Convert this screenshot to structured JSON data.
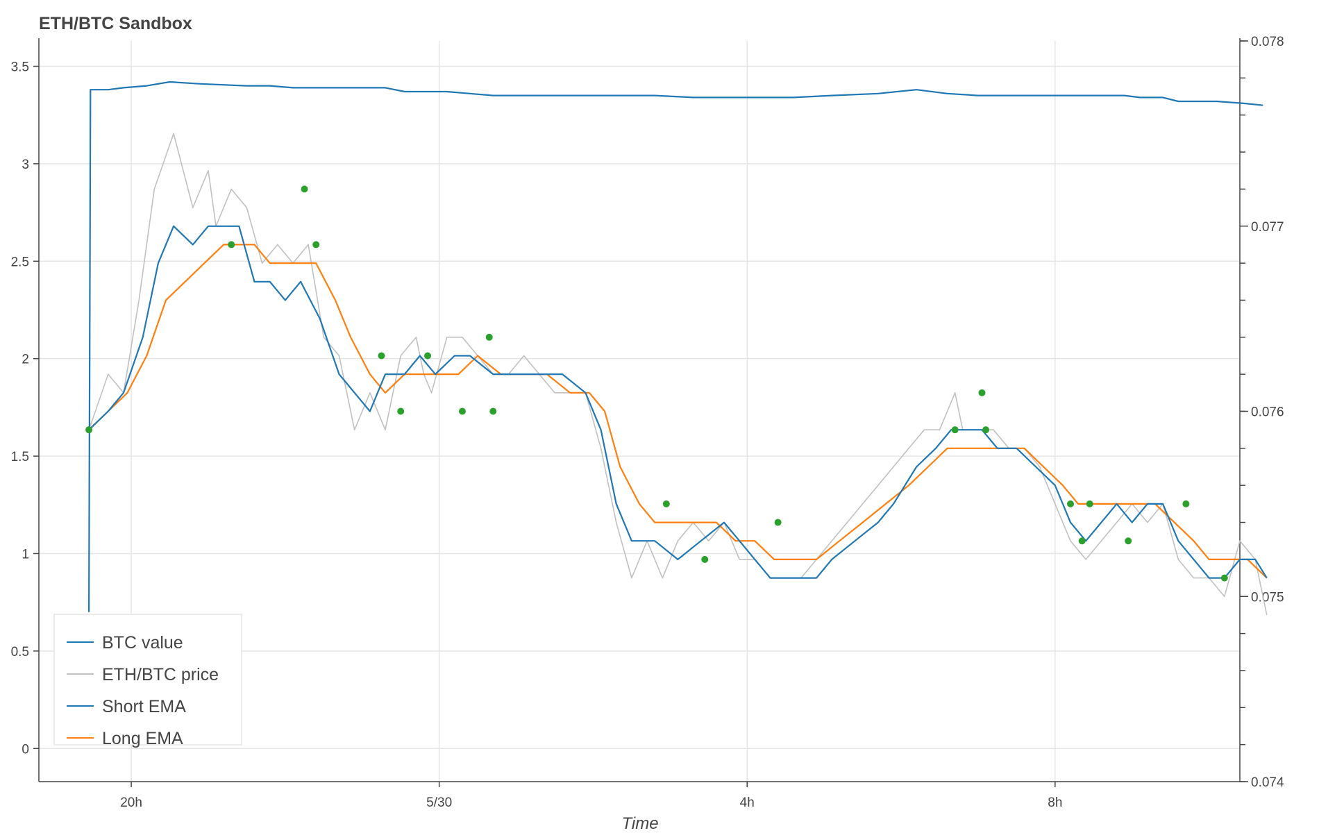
{
  "chart_data": {
    "type": "line",
    "title": "ETH/BTC Sandbox",
    "xlabel": "Time",
    "ylabel": "",
    "y2label": "",
    "x_range_hours": [
      18.6,
      13.99
    ],
    "xlim_hours": [
      -1.2,
      14.4
    ],
    "x_ticks": [
      {
        "hour": 0,
        "label": "20h"
      },
      {
        "hour": 4,
        "label": "5/30"
      },
      {
        "hour": 8,
        "label": "4h"
      },
      {
        "hour": 12,
        "label": "8h"
      }
    ],
    "ylim_left": [
      -0.17,
      3.63
    ],
    "ylim_right": [
      0.074,
      0.078
    ],
    "y_ticks_left": [
      {
        "value": 0,
        "label": "0"
      },
      {
        "value": 0.5,
        "label": "0.5"
      },
      {
        "value": 1,
        "label": "1"
      },
      {
        "value": 1.5,
        "label": "1.5"
      },
      {
        "value": 2,
        "label": "2"
      },
      {
        "value": 2.5,
        "label": "2.5"
      },
      {
        "value": 3,
        "label": "3"
      },
      {
        "value": 3.5,
        "label": "3.5"
      }
    ],
    "y_ticks_right": [
      {
        "value": 0.074,
        "label": "0.074"
      },
      {
        "value": 0.075,
        "label": "0.075"
      },
      {
        "value": 0.076,
        "label": "0.076"
      },
      {
        "value": 0.077,
        "label": "0.077"
      },
      {
        "value": 0.078,
        "label": "0.078"
      }
    ],
    "legend_position": "bottom-left",
    "grid": true,
    "series": [
      {
        "name": "BTC value",
        "color": "#1f77b4",
        "axis": "left",
        "points": [
          [
            -0.55,
            0.7
          ],
          [
            -0.53,
            3.38
          ],
          [
            -0.3,
            3.38
          ],
          [
            -0.1,
            3.39
          ],
          [
            0.2,
            3.4
          ],
          [
            0.5,
            3.42
          ],
          [
            0.9,
            3.41
          ],
          [
            1.5,
            3.4
          ],
          [
            1.8,
            3.4
          ],
          [
            2.1,
            3.39
          ],
          [
            2.8,
            3.39
          ],
          [
            3.3,
            3.39
          ],
          [
            3.55,
            3.37
          ],
          [
            4.1,
            3.37
          ],
          [
            4.4,
            3.36
          ],
          [
            4.7,
            3.35
          ],
          [
            5.2,
            3.35
          ],
          [
            6.8,
            3.35
          ],
          [
            7.3,
            3.34
          ],
          [
            8.1,
            3.34
          ],
          [
            8.6,
            3.34
          ],
          [
            9.1,
            3.35
          ],
          [
            9.7,
            3.36
          ],
          [
            10.2,
            3.38
          ],
          [
            10.6,
            3.36
          ],
          [
            11.0,
            3.35
          ],
          [
            11.5,
            3.35
          ],
          [
            12.9,
            3.35
          ],
          [
            13.1,
            3.34
          ],
          [
            13.4,
            3.34
          ],
          [
            13.6,
            3.32
          ],
          [
            14.1,
            3.32
          ],
          [
            14.45,
            3.31
          ],
          [
            14.7,
            3.3
          ]
        ]
      },
      {
        "name": "ETH/BTC price",
        "color": "#c0c0c0",
        "axis": "right",
        "points": [
          [
            -0.55,
            0.0759
          ],
          [
            -0.3,
            0.0762
          ],
          [
            -0.1,
            0.0761
          ],
          [
            0.1,
            0.0766
          ],
          [
            0.3,
            0.0772
          ],
          [
            0.55,
            0.0775
          ],
          [
            0.8,
            0.0771
          ],
          [
            1.0,
            0.0773
          ],
          [
            1.1,
            0.077
          ],
          [
            1.3,
            0.0772
          ],
          [
            1.5,
            0.0771
          ],
          [
            1.7,
            0.0768
          ],
          [
            1.9,
            0.0769
          ],
          [
            2.1,
            0.0768
          ],
          [
            2.3,
            0.0769
          ],
          [
            2.5,
            0.0764
          ],
          [
            2.7,
            0.0763
          ],
          [
            2.9,
            0.0759
          ],
          [
            3.1,
            0.0761
          ],
          [
            3.3,
            0.0759
          ],
          [
            3.5,
            0.0763
          ],
          [
            3.7,
            0.0764
          ],
          [
            3.8,
            0.0762
          ],
          [
            3.9,
            0.0761
          ],
          [
            4.1,
            0.0764
          ],
          [
            4.3,
            0.0764
          ],
          [
            4.5,
            0.0763
          ],
          [
            4.7,
            0.0762
          ],
          [
            4.9,
            0.0762
          ],
          [
            5.1,
            0.0763
          ],
          [
            5.3,
            0.0762
          ],
          [
            5.5,
            0.0761
          ],
          [
            5.7,
            0.0761
          ],
          [
            5.9,
            0.0761
          ],
          [
            6.1,
            0.0758
          ],
          [
            6.3,
            0.0754
          ],
          [
            6.5,
            0.0751
          ],
          [
            6.7,
            0.0753
          ],
          [
            6.9,
            0.0751
          ],
          [
            7.1,
            0.0753
          ],
          [
            7.3,
            0.0754
          ],
          [
            7.5,
            0.0753
          ],
          [
            7.7,
            0.0754
          ],
          [
            7.9,
            0.0752
          ],
          [
            8.1,
            0.0752
          ],
          [
            8.3,
            0.0751
          ],
          [
            8.5,
            0.0751
          ],
          [
            8.7,
            0.0751
          ],
          [
            8.9,
            0.0752
          ],
          [
            9.1,
            0.0753
          ],
          [
            9.3,
            0.0754
          ],
          [
            9.5,
            0.0755
          ],
          [
            9.7,
            0.0756
          ],
          [
            9.9,
            0.0757
          ],
          [
            10.1,
            0.0758
          ],
          [
            10.3,
            0.0759
          ],
          [
            10.5,
            0.0759
          ],
          [
            10.7,
            0.0761
          ],
          [
            10.8,
            0.0759
          ],
          [
            11.0,
            0.0759
          ],
          [
            11.2,
            0.0759
          ],
          [
            11.4,
            0.0758
          ],
          [
            11.6,
            0.0758
          ],
          [
            11.8,
            0.0757
          ],
          [
            12.0,
            0.0755
          ],
          [
            12.2,
            0.0753
          ],
          [
            12.4,
            0.0752
          ],
          [
            12.6,
            0.0753
          ],
          [
            12.8,
            0.0754
          ],
          [
            13.0,
            0.0755
          ],
          [
            13.2,
            0.0754
          ],
          [
            13.4,
            0.0755
          ],
          [
            13.6,
            0.0752
          ],
          [
            13.8,
            0.0751
          ],
          [
            14.0,
            0.0751
          ],
          [
            14.2,
            0.075
          ],
          [
            14.4,
            0.0753
          ],
          [
            14.6,
            0.0752
          ],
          [
            14.75,
            0.0749
          ]
        ]
      },
      {
        "name": "Short EMA",
        "color": "#1f77b4",
        "axis": "right",
        "points": [
          [
            -0.55,
            0.0759
          ],
          [
            -0.3,
            0.076
          ],
          [
            -0.1,
            0.0761
          ],
          [
            0.15,
            0.0764
          ],
          [
            0.35,
            0.0768
          ],
          [
            0.55,
            0.077
          ],
          [
            0.8,
            0.0769
          ],
          [
            1.0,
            0.077
          ],
          [
            1.2,
            0.077
          ],
          [
            1.4,
            0.077
          ],
          [
            1.6,
            0.0767
          ],
          [
            1.8,
            0.0767
          ],
          [
            2.0,
            0.0766
          ],
          [
            2.2,
            0.0767
          ],
          [
            2.45,
            0.0765
          ],
          [
            2.7,
            0.0762
          ],
          [
            2.9,
            0.0761
          ],
          [
            3.1,
            0.076
          ],
          [
            3.3,
            0.0762
          ],
          [
            3.55,
            0.0762
          ],
          [
            3.75,
            0.0763
          ],
          [
            3.95,
            0.0762
          ],
          [
            4.2,
            0.0763
          ],
          [
            4.4,
            0.0763
          ],
          [
            4.7,
            0.0762
          ],
          [
            5.0,
            0.0762
          ],
          [
            5.3,
            0.0762
          ],
          [
            5.6,
            0.0762
          ],
          [
            5.9,
            0.0761
          ],
          [
            6.1,
            0.0759
          ],
          [
            6.3,
            0.0755
          ],
          [
            6.5,
            0.0753
          ],
          [
            6.8,
            0.0753
          ],
          [
            7.1,
            0.0752
          ],
          [
            7.4,
            0.0753
          ],
          [
            7.7,
            0.0754
          ],
          [
            7.9,
            0.0753
          ],
          [
            8.1,
            0.0752
          ],
          [
            8.3,
            0.0751
          ],
          [
            8.5,
            0.0751
          ],
          [
            8.7,
            0.0751
          ],
          [
            8.9,
            0.0751
          ],
          [
            9.1,
            0.0752
          ],
          [
            9.4,
            0.0753
          ],
          [
            9.7,
            0.0754
          ],
          [
            9.9,
            0.0755
          ],
          [
            10.2,
            0.0757
          ],
          [
            10.45,
            0.0758
          ],
          [
            10.65,
            0.0759
          ],
          [
            10.85,
            0.0759
          ],
          [
            11.05,
            0.0759
          ],
          [
            11.25,
            0.0758
          ],
          [
            11.5,
            0.0758
          ],
          [
            11.75,
            0.0757
          ],
          [
            12.0,
            0.0756
          ],
          [
            12.2,
            0.0754
          ],
          [
            12.4,
            0.0753
          ],
          [
            12.6,
            0.0754
          ],
          [
            12.8,
            0.0755
          ],
          [
            13.0,
            0.0754
          ],
          [
            13.2,
            0.0755
          ],
          [
            13.4,
            0.0755
          ],
          [
            13.6,
            0.0753
          ],
          [
            13.8,
            0.0752
          ],
          [
            14.0,
            0.0751
          ],
          [
            14.2,
            0.0751
          ],
          [
            14.4,
            0.0752
          ],
          [
            14.6,
            0.0752
          ],
          [
            14.75,
            0.0751
          ]
        ]
      },
      {
        "name": "Long EMA",
        "color": "#ff7f0e",
        "axis": "right",
        "points": [
          [
            -0.55,
            0.0759
          ],
          [
            -0.3,
            0.076
          ],
          [
            -0.05,
            0.0761
          ],
          [
            0.2,
            0.0763
          ],
          [
            0.45,
            0.0766
          ],
          [
            0.7,
            0.0767
          ],
          [
            0.95,
            0.0768
          ],
          [
            1.2,
            0.0769
          ],
          [
            1.4,
            0.0769
          ],
          [
            1.6,
            0.0769
          ],
          [
            1.8,
            0.0768
          ],
          [
            2.0,
            0.0768
          ],
          [
            2.2,
            0.0768
          ],
          [
            2.4,
            0.0768
          ],
          [
            2.65,
            0.0766
          ],
          [
            2.85,
            0.0764
          ],
          [
            3.1,
            0.0762
          ],
          [
            3.3,
            0.0761
          ],
          [
            3.55,
            0.0762
          ],
          [
            3.75,
            0.0762
          ],
          [
            4.0,
            0.0762
          ],
          [
            4.25,
            0.0762
          ],
          [
            4.5,
            0.0763
          ],
          [
            4.8,
            0.0762
          ],
          [
            5.1,
            0.0762
          ],
          [
            5.4,
            0.0762
          ],
          [
            5.7,
            0.0761
          ],
          [
            5.95,
            0.0761
          ],
          [
            6.15,
            0.076
          ],
          [
            6.35,
            0.0757
          ],
          [
            6.6,
            0.0755
          ],
          [
            6.8,
            0.0754
          ],
          [
            7.1,
            0.0754
          ],
          [
            7.35,
            0.0754
          ],
          [
            7.6,
            0.0754
          ],
          [
            7.85,
            0.0753
          ],
          [
            8.1,
            0.0753
          ],
          [
            8.35,
            0.0752
          ],
          [
            8.6,
            0.0752
          ],
          [
            8.9,
            0.0752
          ],
          [
            9.2,
            0.0753
          ],
          [
            9.5,
            0.0754
          ],
          [
            9.8,
            0.0755
          ],
          [
            10.1,
            0.0756
          ],
          [
            10.35,
            0.0757
          ],
          [
            10.6,
            0.0758
          ],
          [
            10.85,
            0.0758
          ],
          [
            11.1,
            0.0758
          ],
          [
            11.35,
            0.0758
          ],
          [
            11.6,
            0.0758
          ],
          [
            11.85,
            0.0757
          ],
          [
            12.1,
            0.0756
          ],
          [
            12.3,
            0.0755
          ],
          [
            12.55,
            0.0755
          ],
          [
            12.8,
            0.0755
          ],
          [
            13.05,
            0.0755
          ],
          [
            13.3,
            0.0755
          ],
          [
            13.55,
            0.0754
          ],
          [
            13.8,
            0.0753
          ],
          [
            14.0,
            0.0752
          ],
          [
            14.25,
            0.0752
          ],
          [
            14.5,
            0.0752
          ],
          [
            14.75,
            0.0751
          ]
        ]
      }
    ],
    "trade_markers": {
      "name": "trades",
      "color": "#2ca02c",
      "axis": "right",
      "points": [
        [
          -0.55,
          0.0759
        ],
        [
          1.3,
          0.0769
        ],
        [
          2.25,
          0.0772
        ],
        [
          2.4,
          0.0769
        ],
        [
          3.25,
          0.0763
        ],
        [
          3.5,
          0.076
        ],
        [
          3.85,
          0.0763
        ],
        [
          4.3,
          0.076
        ],
        [
          4.65,
          0.0764
        ],
        [
          4.7,
          0.076
        ],
        [
          6.95,
          0.0755
        ],
        [
          7.45,
          0.0752
        ],
        [
          8.4,
          0.0754
        ],
        [
          10.7,
          0.0759
        ],
        [
          11.05,
          0.0761
        ],
        [
          11.1,
          0.0759
        ],
        [
          12.2,
          0.0755
        ],
        [
          12.35,
          0.0753
        ],
        [
          12.45,
          0.0755
        ],
        [
          12.95,
          0.0753
        ],
        [
          13.7,
          0.0755
        ],
        [
          14.2,
          0.0751
        ]
      ]
    }
  }
}
